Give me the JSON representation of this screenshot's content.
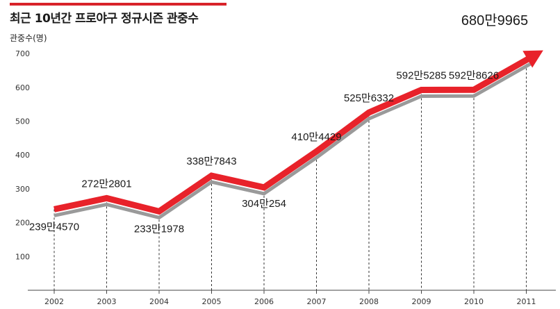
{
  "chart_data": {
    "type": "line",
    "title": "최근 10년간 프로야구 정규시즌 관중수",
    "ylabel": "관중수(명)",
    "xlabel": "",
    "ylim": [
      0,
      750
    ],
    "yticks": [
      100,
      200,
      300,
      400,
      500,
      600,
      700
    ],
    "categories": [
      "2002",
      "2003",
      "2004",
      "2005",
      "2006",
      "2007",
      "2008",
      "2009",
      "2010",
      "2011"
    ],
    "values": [
      2394570,
      2722801,
      2331978,
      3387843,
      3040254,
      4104429,
      5256332,
      5925285,
      5928626,
      6809965
    ],
    "data_labels": [
      "239만4570",
      "272만2801",
      "233만1978",
      "338만7843",
      "304만254",
      "410만4429",
      "525만6332",
      "592만5285",
      "592만8626",
      "680만9965"
    ],
    "series_color": "#e8222a",
    "shadow_color": "#9a9a9a",
    "grid": false,
    "drop_lines": "dashed"
  }
}
